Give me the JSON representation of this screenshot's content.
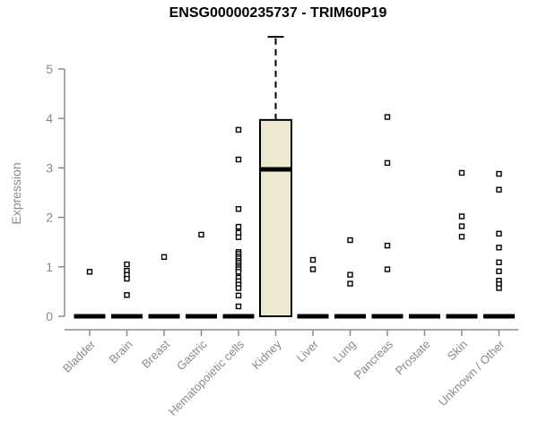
{
  "chart_data": {
    "type": "boxplot",
    "title": "ENSG00000235737 - TRIM60P19",
    "xlabel": "",
    "ylabel": "Expression",
    "ylim": [
      0,
      5.7
    ],
    "yticks": [
      0,
      1,
      2,
      3,
      4,
      5
    ],
    "grid": false,
    "legend": "none",
    "categories": [
      "Bladder",
      "Brain",
      "Breast",
      "Gastric",
      "Hematopoietic cells",
      "Kidney",
      "Liver",
      "Lung",
      "Pancreas",
      "Prostate",
      "Skin",
      "Unknown / Other"
    ],
    "boxes": [
      {
        "category": "Bladder",
        "q1": 0,
        "median": 0,
        "q3": 0,
        "whisker_low": 0,
        "whisker_high": 0,
        "outliers": [
          0.9
        ]
      },
      {
        "category": "Brain",
        "q1": 0,
        "median": 0,
        "q3": 0,
        "whisker_low": 0,
        "whisker_high": 0,
        "outliers": [
          1.05,
          0.92,
          0.84,
          0.76,
          0.43
        ]
      },
      {
        "category": "Breast",
        "q1": 0,
        "median": 0,
        "q3": 0,
        "whisker_low": 0,
        "whisker_high": 0,
        "outliers": [
          1.2
        ]
      },
      {
        "category": "Gastric",
        "q1": 0,
        "median": 0,
        "q3": 0,
        "whisker_low": 0,
        "whisker_high": 0,
        "outliers": [
          1.65
        ]
      },
      {
        "category": "Hematopoietic cells",
        "q1": 0,
        "median": 0,
        "q3": 0,
        "whisker_low": 0,
        "whisker_high": 0,
        "outliers": [
          3.77,
          3.17,
          2.17,
          1.81,
          1.69,
          1.6,
          1.3,
          1.26,
          1.21,
          1.17,
          1.12,
          1.08,
          1.03,
          0.99,
          0.95,
          0.9,
          0.78,
          0.71,
          0.64,
          0.57,
          0.42,
          0.2
        ]
      },
      {
        "category": "Kidney",
        "q1": 0,
        "median": 2.97,
        "q3": 3.97,
        "whisker_low": 0,
        "whisker_high": 5.65,
        "outliers": []
      },
      {
        "category": "Liver",
        "q1": 0,
        "median": 0,
        "q3": 0,
        "whisker_low": 0,
        "whisker_high": 0,
        "outliers": [
          1.14,
          0.95
        ]
      },
      {
        "category": "Lung",
        "q1": 0,
        "median": 0,
        "q3": 0,
        "whisker_low": 0,
        "whisker_high": 0,
        "outliers": [
          1.54,
          0.84,
          0.66
        ]
      },
      {
        "category": "Pancreas",
        "q1": 0,
        "median": 0,
        "q3": 0,
        "whisker_low": 0,
        "whisker_high": 0,
        "outliers": [
          4.03,
          3.1,
          1.43,
          0.95
        ]
      },
      {
        "category": "Prostate",
        "q1": 0,
        "median": 0,
        "q3": 0,
        "whisker_low": 0,
        "whisker_high": 0,
        "outliers": []
      },
      {
        "category": "Skin",
        "q1": 0,
        "median": 0,
        "q3": 0,
        "whisker_low": 0,
        "whisker_high": 0,
        "outliers": [
          2.9,
          2.02,
          1.82,
          1.61
        ]
      },
      {
        "category": "Unknown / Other",
        "q1": 0,
        "median": 0,
        "q3": 0,
        "whisker_low": 0,
        "whisker_high": 0,
        "outliers": [
          2.88,
          2.56,
          1.67,
          1.39,
          1.09,
          0.91,
          0.72,
          0.65,
          0.57
        ]
      }
    ],
    "colors": {
      "background": "#ffffff",
      "box_fill": "#EDE8D0",
      "box_border": "#000000",
      "median": "#000000",
      "whisker": "#000000",
      "outlier_stroke": "#000000",
      "outlier_fill": "#ffffff",
      "axis_line": "#8a8a8a",
      "axis_text": "#8a8a8a",
      "title": "#000000"
    }
  }
}
